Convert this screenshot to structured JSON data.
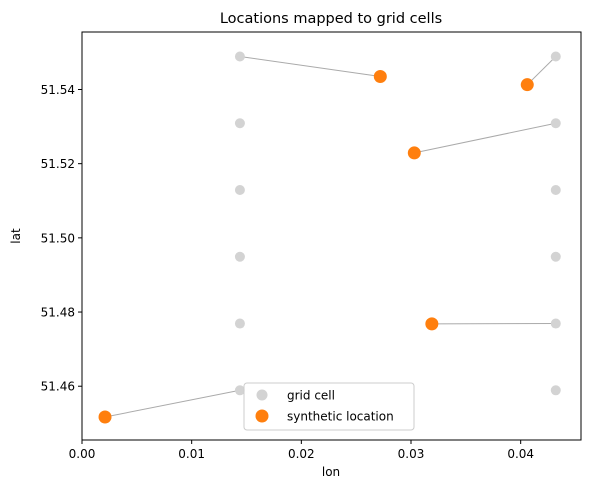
{
  "chart_data": {
    "type": "scatter",
    "title": "Locations mapped to grid cells",
    "xlabel": "lon",
    "ylabel": "lat",
    "xlim": [
      0.0,
      0.0455
    ],
    "ylim": [
      51.4455,
      51.5555
    ],
    "xticks": [
      {
        "value": 0.0,
        "label": "0.00"
      },
      {
        "value": 0.01,
        "label": "0.01"
      },
      {
        "value": 0.02,
        "label": "0.02"
      },
      {
        "value": 0.03,
        "label": "0.03"
      },
      {
        "value": 0.04,
        "label": "0.04"
      }
    ],
    "yticks": [
      {
        "value": 51.46,
        "label": "51.46"
      },
      {
        "value": 51.48,
        "label": "51.48"
      },
      {
        "value": 51.5,
        "label": "51.50"
      },
      {
        "value": 51.52,
        "label": "51.52"
      },
      {
        "value": 51.54,
        "label": "51.54"
      }
    ],
    "grid": false,
    "legend_position": "bottom-center",
    "series": [
      {
        "name": "grid cell",
        "color": "#d3d3d3",
        "points": [
          {
            "x": 0.0144,
            "y": 51.4589
          },
          {
            "x": 0.0144,
            "y": 51.4769
          },
          {
            "x": 0.0144,
            "y": 51.4949
          },
          {
            "x": 0.0144,
            "y": 51.5129
          },
          {
            "x": 0.0144,
            "y": 51.5309
          },
          {
            "x": 0.0144,
            "y": 51.5489
          },
          {
            "x": 0.0432,
            "y": 51.4589
          },
          {
            "x": 0.0432,
            "y": 51.4769
          },
          {
            "x": 0.0432,
            "y": 51.4949
          },
          {
            "x": 0.0432,
            "y": 51.5129
          },
          {
            "x": 0.0432,
            "y": 51.5309
          },
          {
            "x": 0.0432,
            "y": 51.5489
          }
        ]
      },
      {
        "name": "synthetic location",
        "color": "#ff7f0e",
        "points": [
          {
            "x": 0.0021,
            "y": 51.4517
          },
          {
            "x": 0.0272,
            "y": 51.5435
          },
          {
            "x": 0.0406,
            "y": 51.5413
          },
          {
            "x": 0.0303,
            "y": 51.5229
          },
          {
            "x": 0.0319,
            "y": 51.4768
          }
        ]
      }
    ],
    "links": [
      {
        "from": [
          0.0021,
          51.4517
        ],
        "to": [
          0.0144,
          51.4589
        ]
      },
      {
        "from": [
          0.0272,
          51.5435
        ],
        "to": [
          0.0144,
          51.5489
        ]
      },
      {
        "from": [
          0.0406,
          51.5413
        ],
        "to": [
          0.0432,
          51.5489
        ]
      },
      {
        "from": [
          0.0303,
          51.5229
        ],
        "to": [
          0.0432,
          51.5309
        ]
      },
      {
        "from": [
          0.0319,
          51.4768
        ],
        "to": [
          0.0432,
          51.4769
        ]
      }
    ],
    "link_color": "#aaaaaa"
  }
}
